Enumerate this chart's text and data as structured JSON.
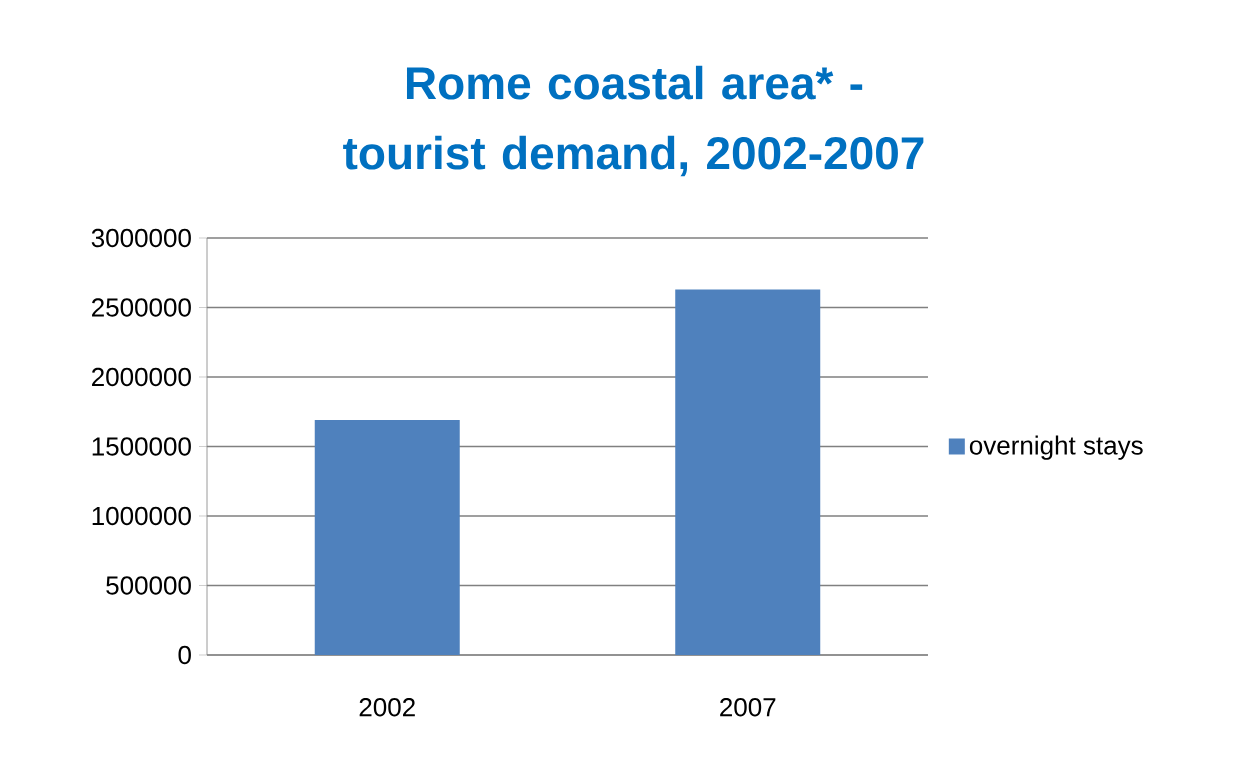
{
  "chart_data": {
    "type": "bar",
    "title": "Rome coastal area* - tourist demand, 2002-2007",
    "categories": [
      "2002",
      "2007"
    ],
    "series": [
      {
        "name": "overnight stays",
        "color": "#4f81bd",
        "values": [
          1690000,
          2630000
        ]
      }
    ],
    "ylim": [
      0,
      3000000
    ],
    "yticks": [
      0,
      500000,
      1000000,
      1500000,
      2000000,
      2500000,
      3000000
    ],
    "grid": "y",
    "legend": "right"
  }
}
